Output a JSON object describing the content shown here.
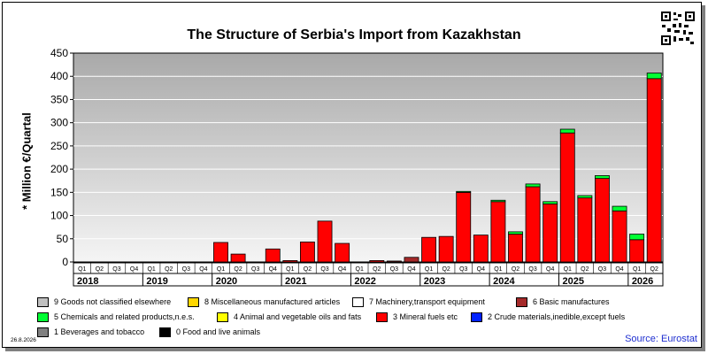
{
  "title": "The Structure of Serbia's Import from Kazakhstan",
  "source": "Source: Eurostat",
  "date_stamp": "26.8.2026",
  "colors": {
    "mineral_fuels": "#ff0000",
    "chemicals": "#00ff33",
    "basic_manufactures": "#a52a2a",
    "plot_bg_top": "#a9a9a9",
    "plot_bg_bottom": "#f5f5f5",
    "source": "#1f2fd0"
  },
  "legend": [
    {
      "label": "9 Goods not classified elsewhere",
      "color": "#c0c0c0"
    },
    {
      "label": "8 Miscellaneous manufactured articles",
      "color": "#ffd700"
    },
    {
      "label": "7 Machinery,transport equipment",
      "color": "#ffffff"
    },
    {
      "label": "6 Basic manufactures",
      "color": "#a52a2a"
    },
    {
      "label": "5 Chemicals and related products,n.e.s.",
      "color": "#00ff33"
    },
    {
      "label": "4 Animal and vegetable oils and fats",
      "color": "#ffff00"
    },
    {
      "label": "3 Mineral fuels etc",
      "color": "#ff0000"
    },
    {
      "label": "2 Crude materials,inedible,except fuels",
      "color": "#0022ff"
    },
    {
      "label": "1 Beverages and tobacco",
      "color": "#808080"
    },
    {
      "label": "0 Food and live animals",
      "color": "#000000"
    }
  ],
  "chart_data": {
    "type": "bar",
    "stacked": true,
    "ylabel": "* Million €/Quartal",
    "ylim": [
      0,
      450
    ],
    "yticks": [
      0,
      50,
      100,
      150,
      200,
      250,
      300,
      350,
      400,
      450
    ],
    "quarter_labels": [
      "Q1",
      "Q2",
      "Q3",
      "Q4",
      "Q1",
      "Q2",
      "Q3",
      "Q4",
      "Q1",
      "Q2",
      "Q3",
      "Q4",
      "Q1",
      "Q2",
      "Q3",
      "Q4",
      "Q1",
      "Q2",
      "Q3",
      "Q4",
      "Q1",
      "Q2",
      "Q3",
      "Q4",
      "Q1",
      "Q2",
      "Q3",
      "Q4",
      "Q1",
      "Q2",
      "Q3",
      "Q4",
      "Q1",
      "Q2"
    ],
    "years": [
      {
        "label": "2018",
        "quarters": 4
      },
      {
        "label": "2019",
        "quarters": 4
      },
      {
        "label": "2020",
        "quarters": 4
      },
      {
        "label": "2021",
        "quarters": 4
      },
      {
        "label": "2022",
        "quarters": 4
      },
      {
        "label": "2023",
        "quarters": 4
      },
      {
        "label": "2024",
        "quarters": 4
      },
      {
        "label": "2025",
        "quarters": 4
      },
      {
        "label": "2026",
        "quarters": 2
      }
    ],
    "series": [
      {
        "name": "6 Basic manufactures",
        "color": "#a52a2a",
        "values": [
          0,
          0,
          0,
          0,
          0,
          0,
          0,
          0,
          0,
          0,
          0,
          0,
          0,
          0,
          0,
          0,
          0,
          0,
          2,
          10,
          0,
          0,
          0,
          0,
          0,
          0,
          0,
          0,
          0,
          0,
          0,
          0,
          0,
          0
        ]
      },
      {
        "name": "3 Mineral fuels etc",
        "color": "#ff0000",
        "values": [
          0,
          0,
          0,
          0,
          0,
          0,
          0,
          0,
          42,
          17,
          0,
          28,
          3,
          43,
          88,
          40,
          0,
          3,
          0,
          0,
          53,
          55,
          150,
          58,
          130,
          60,
          162,
          125,
          278,
          138,
          180,
          110,
          48,
          395
        ]
      },
      {
        "name": "5 Chemicals and related products,n.e.s.",
        "color": "#00ff33",
        "values": [
          0,
          0,
          0,
          0,
          0,
          0,
          0,
          0,
          0,
          0,
          0,
          0,
          0,
          0,
          0,
          0,
          0,
          0,
          0,
          0,
          0,
          0,
          2,
          0,
          3,
          5,
          6,
          5,
          8,
          5,
          6,
          10,
          12,
          12
        ]
      }
    ]
  }
}
